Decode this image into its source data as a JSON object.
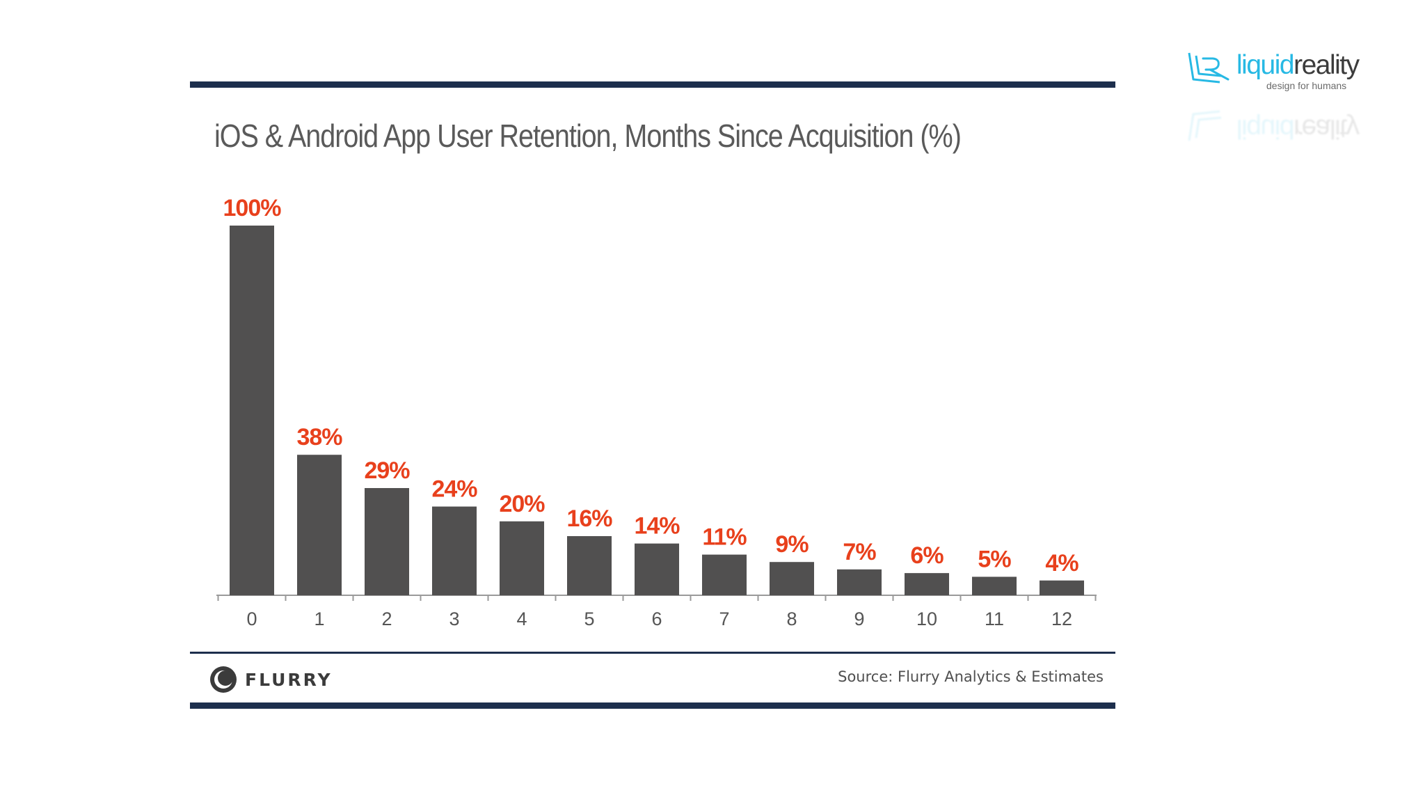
{
  "brand": {
    "name_part1": "liquid",
    "name_part2": "reality",
    "tagline": "design for humans",
    "accent": "#27b9e4"
  },
  "colors": {
    "bar": "#515050",
    "label": "#e8401c",
    "rule": "#1d2f4d",
    "axis": "#9a9a9a",
    "tick_text": "#555555"
  },
  "chart_data": {
    "type": "bar",
    "title": "iOS & Android App User Retention, Months Since Acquisition (%)",
    "xlabel": "",
    "ylabel": "",
    "categories": [
      "0",
      "1",
      "2",
      "3",
      "4",
      "5",
      "6",
      "7",
      "8",
      "9",
      "10",
      "11",
      "12"
    ],
    "values": [
      100,
      38,
      29,
      24,
      20,
      16,
      14,
      11,
      9,
      7,
      6,
      5,
      4
    ],
    "data_labels": [
      "100%",
      "38%",
      "29%",
      "24%",
      "20%",
      "16%",
      "14%",
      "11%",
      "9%",
      "7%",
      "6%",
      "5%",
      "4%"
    ],
    "ylim": [
      0,
      100
    ],
    "grid": false,
    "legend": "none"
  },
  "footer": {
    "logo_text": "FLURRY",
    "source": "Source: Flurry Analytics & Estimates"
  }
}
